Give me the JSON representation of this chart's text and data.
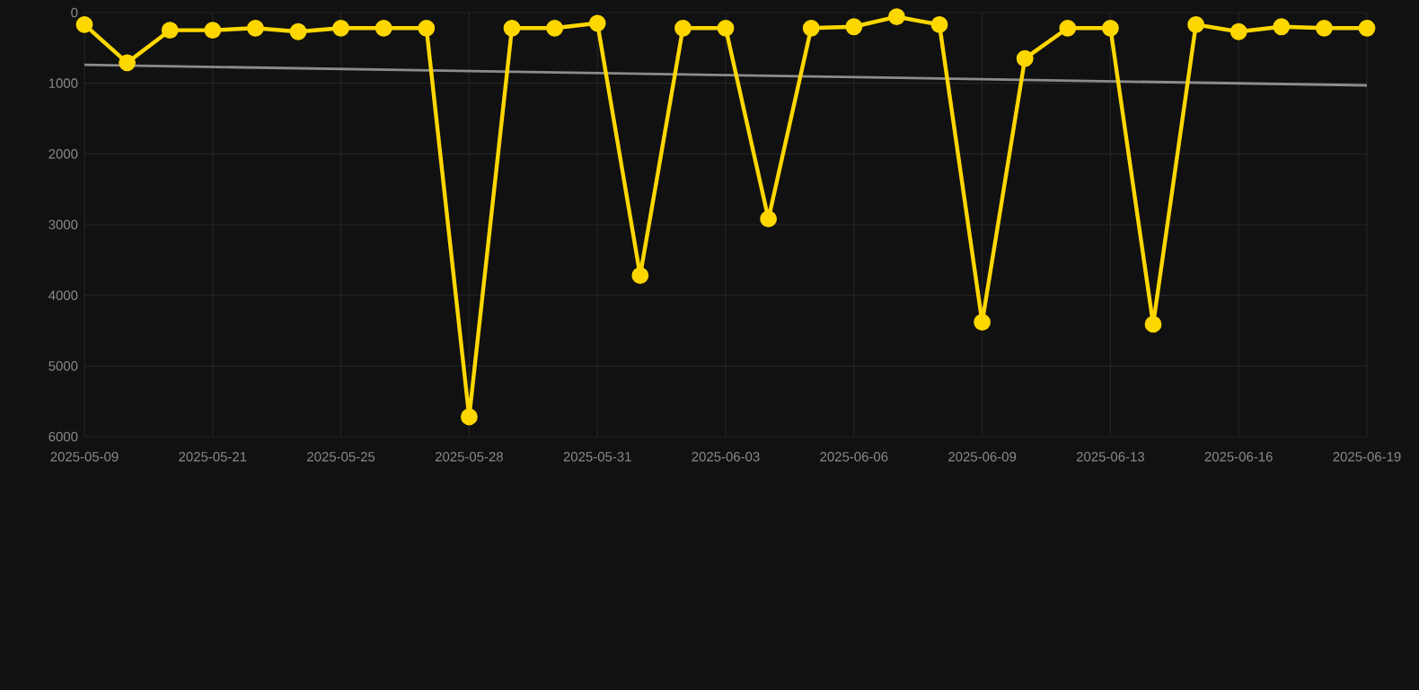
{
  "chart_data": {
    "type": "line",
    "categories": [
      "2025-05-09",
      null,
      null,
      "2025-05-21",
      null,
      null,
      "2025-05-25",
      null,
      null,
      "2025-05-28",
      null,
      null,
      "2025-05-31",
      null,
      null,
      "2025-06-03",
      null,
      null,
      "2025-06-06",
      null,
      null,
      "2025-06-09",
      null,
      null,
      "2025-06-13",
      null,
      null,
      "2025-06-16",
      null,
      null,
      "2025-06-19"
    ],
    "series": [
      {
        "color": "#ffd700",
        "values": [
          170,
          710,
          250,
          250,
          220,
          270,
          220,
          220,
          220,
          5720,
          220,
          220,
          150,
          3720,
          220,
          220,
          2920,
          220,
          200,
          60,
          170,
          4380,
          650,
          220,
          220,
          4410,
          170,
          270,
          200,
          220,
          220
        ]
      },
      {
        "type": "line",
        "color": "#8c8c8c",
        "marker": "none",
        "values": [
          740,
          null,
          null,
          null,
          null,
          null,
          null,
          null,
          null,
          null,
          null,
          null,
          null,
          null,
          null,
          null,
          null,
          null,
          null,
          null,
          null,
          null,
          null,
          null,
          null,
          null,
          null,
          null,
          null,
          null,
          1030
        ]
      }
    ],
    "ylim": [
      6000,
      0
    ],
    "yticks": [
      0,
      1000,
      2000,
      3000,
      4000,
      5000,
      6000
    ],
    "grid": true,
    "marker": "circle",
    "line_style": "solid"
  }
}
